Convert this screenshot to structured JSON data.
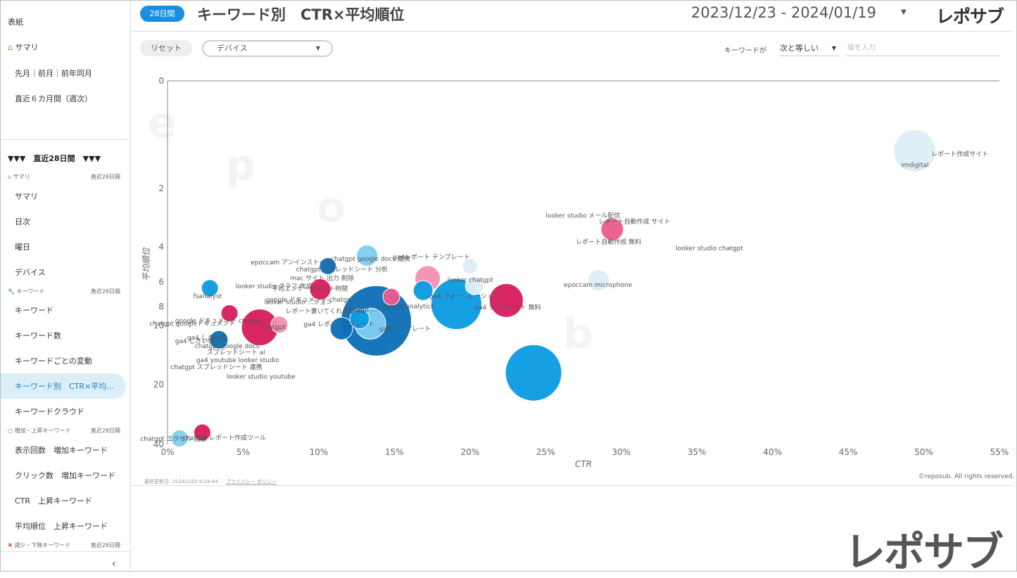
{
  "sidebar": {
    "top_items": [
      "表紙",
      "サマリ",
      "先月｜前月｜前年同月",
      "直近６カ月間（週次）"
    ],
    "section_title": "▼▼▼　直近28日間　▼▼▼",
    "groups": [
      {
        "label": "サマリ",
        "period": "直近28日間",
        "icon": "house-icon",
        "items": [
          "サマリ",
          "日次",
          "曜日",
          "デバイス"
        ]
      },
      {
        "label": "キーワード",
        "period": "直近28日間",
        "icon": "wrench-icon",
        "items": [
          "キーワード",
          "キーワード数",
          "キーワードごとの変動",
          "キーワード別　CTR×平均...",
          "キーワードクラウド"
        ]
      },
      {
        "label": "増加・上昇キーワード",
        "period": "直近28日間",
        "icon": "circle-icon",
        "items": [
          "表示回数　増加キーワード",
          "クリック数　増加キーワード",
          "CTR　上昇キーワード",
          "平均順位　上昇キーワード"
        ]
      },
      {
        "label": "減少・下降キーワード",
        "period": "直近28日間",
        "icon": "cross-icon",
        "items": []
      }
    ],
    "active_item": "キーワード別　CTR×平均...",
    "collapse_label": "‹"
  },
  "header": {
    "period_badge": "28日間",
    "title": "キーワード別　CTR×平均順位",
    "date_range": "2023/12/23 - 2024/01/19",
    "logo": "レポサブ"
  },
  "controls": {
    "reset_label": "リセット",
    "device_label": "デバイス",
    "keyword_filter_label": "キーワードが",
    "operator_value": "次と等しい",
    "value_placeholder": "値を入力"
  },
  "footer": {
    "last_updated": "最終更新日: 2024/1/20 9:18:44",
    "privacy_link": "プライバシー ポリシー",
    "copyright": "©reposub. All rights reserved.",
    "big_logo": "レポサブ"
  },
  "chart_data": {
    "type": "scatter",
    "bubble": true,
    "xlabel": "CTR",
    "ylabel": "平均順位",
    "x_ticks": [
      "0%",
      "5%",
      "10%",
      "15%",
      "20%",
      "25%",
      "30%",
      "35%",
      "40%",
      "45%",
      "50%",
      "55%"
    ],
    "y_ticks": [
      "0",
      "2",
      "4",
      "6",
      "8",
      "10",
      "20",
      "40"
    ],
    "xlim": [
      0,
      55
    ],
    "y_axis_reversed": true,
    "grid": false,
    "colors": {
      "dark_blue": "#0b6eb5",
      "blue": "#0a9be3",
      "light_blue": "#7fcdf3",
      "pale_blue": "#ddeef8",
      "dark_pink": "#d81a5c",
      "pink": "#ee5b8b",
      "light_pink": "#f38fb1"
    },
    "points": [
      {
        "x": 49.4,
        "y": 1.3,
        "size": 30,
        "color": "pale_blue"
      },
      {
        "x": 29.4,
        "y": 3.4,
        "size": 16,
        "color": "pink"
      },
      {
        "x": 28.5,
        "y": 5.9,
        "size": 15,
        "color": "pale_blue"
      },
      {
        "x": 22.4,
        "y": 7.5,
        "size": 24,
        "color": "dark_pink"
      },
      {
        "x": 24.2,
        "y": 18,
        "size": 40,
        "color": "blue"
      },
      {
        "x": 19.1,
        "y": 7.8,
        "size": 36,
        "color": "blue"
      },
      {
        "x": 20.0,
        "y": 5.1,
        "size": 11,
        "color": "pale_blue"
      },
      {
        "x": 20.3,
        "y": 6.3,
        "size": 13,
        "color": "pale_blue"
      },
      {
        "x": 17.2,
        "y": 5.8,
        "size": 18,
        "color": "light_pink"
      },
      {
        "x": 16.9,
        "y": 6.7,
        "size": 14,
        "color": "blue"
      },
      {
        "x": 13.8,
        "y": 9.5,
        "size": 50,
        "color": "dark_blue"
      },
      {
        "x": 13.4,
        "y": 9.8,
        "size": 22,
        "color": "light_blue"
      },
      {
        "x": 12.7,
        "y": 9.3,
        "size": 14,
        "color": "blue"
      },
      {
        "x": 11.5,
        "y": 10.5,
        "size": 16,
        "color": "dark_blue"
      },
      {
        "x": 14.8,
        "y": 7.2,
        "size": 12,
        "color": "pink"
      },
      {
        "x": 13.2,
        "y": 4.5,
        "size": 15,
        "color": "light_blue"
      },
      {
        "x": 10.6,
        "y": 5.1,
        "size": 12,
        "color": "dark_blue"
      },
      {
        "x": 10.1,
        "y": 6.6,
        "size": 15,
        "color": "dark_pink"
      },
      {
        "x": 7.4,
        "y": 9.9,
        "size": 12,
        "color": "light_pink"
      },
      {
        "x": 6.1,
        "y": 10.3,
        "size": 26,
        "color": "dark_pink"
      },
      {
        "x": 4.1,
        "y": 8.7,
        "size": 12,
        "color": "dark_pink"
      },
      {
        "x": 3.4,
        "y": 12.4,
        "size": 13,
        "color": "dark_blue"
      },
      {
        "x": 2.8,
        "y": 6.5,
        "size": 12,
        "color": "blue"
      },
      {
        "x": 2.3,
        "y": 36,
        "size": 12,
        "color": "dark_pink"
      },
      {
        "x": 0.8,
        "y": 38,
        "size": 12,
        "color": "light_blue"
      }
    ],
    "labels": [
      {
        "text": "レポート作成サイト",
        "x": 50.5,
        "y": 1.4
      },
      {
        "text": "imdigital",
        "x": 48.5,
        "y": 1.6
      },
      {
        "text": "looker studio メール配信",
        "x": 25.0,
        "y": 3.0
      },
      {
        "text": "レポート自動作成 サイト",
        "x": 28.5,
        "y": 3.2
      },
      {
        "text": "レポート自動作成 無料",
        "x": 27.0,
        "y": 3.9
      },
      {
        "text": "looker studio chatgpt",
        "x": 33.6,
        "y": 4.2
      },
      {
        "text": "epoccam microphone",
        "x": 26.2,
        "y": 6.4
      },
      {
        "text": "ga4レポート テンプレート",
        "x": 14.9,
        "y": 4.7
      },
      {
        "text": "looker chatgpt",
        "x": 18.5,
        "y": 6.0
      },
      {
        "text": "ga4 フォー...レーション",
        "x": 17.3,
        "y": 7.3
      },
      {
        "text": "ga4 テンプレート 無料",
        "x": 20.3,
        "y": 8.3
      },
      {
        "text": "epoccam アンインストール",
        "x": 5.5,
        "y": 5.0
      },
      {
        "text": "chatgpt google docs 連携",
        "x": 10.8,
        "y": 4.8
      },
      {
        "text": "chatgpt スプレッドシート 分析",
        "x": 8.5,
        "y": 5.4
      },
      {
        "text": "looker studio グラフ 作成",
        "x": 4.5,
        "y": 6.5
      },
      {
        "text": "mac サイト 出力 削除",
        "x": 8.1,
        "y": 5.9
      },
      {
        "text": "平均エンゲージメント時間",
        "x": 6.9,
        "y": 6.7
      },
      {
        "text": "google ドキュメント chatgpt",
        "x": 6.5,
        "y": 7.6
      },
      {
        "text": "looker studio ...ション",
        "x": 6.4,
        "y": 7.8
      },
      {
        "text": "レポート書いてくれるサイト",
        "x": 7.8,
        "y": 8.7
      },
      {
        "text": "fsanalyst",
        "x": 1.7,
        "y": 7.3
      },
      {
        "text": "google ドキュメント chatgpt",
        "x": 0.5,
        "y": 9.7
      },
      {
        "text": "chatgpt googleドキュメント",
        "x": -1.2,
        "y": 10.0
      },
      {
        "text": "chatgpt",
        "x": 6.2,
        "y": 10.6
      },
      {
        "text": "ga4 しきい値",
        "x": 1.3,
        "y": 12.4
      },
      {
        "text": "ga4 しきい値",
        "x": 0.5,
        "y": 13.0
      },
      {
        "text": "chatgpt google docs",
        "x": 1.8,
        "y": 13.8
      },
      {
        "text": "スプレッドシート ai",
        "x": 2.6,
        "y": 14.9
      },
      {
        "text": "ga4 youtube looker studio",
        "x": 1.9,
        "y": 16.2
      },
      {
        "text": "chatgpt スプレッドシート 連携",
        "x": 0.2,
        "y": 17.4
      },
      {
        "text": "looker studio youtube",
        "x": 3.9,
        "y": 19.0
      },
      {
        "text": "chatgpt エクセル 画像",
        "x": -1.8,
        "y": 38.8
      },
      {
        "text": "chatgpt レポート作成ツール",
        "x": 1.0,
        "y": 38.5
      },
      {
        "text": "ga4 レポート...フレート",
        "x": 9.0,
        "y": 10.1
      },
      {
        "text": "ga4 テンプレート",
        "x": 14.0,
        "y": 10.9
      },
      {
        "text": "chatgpt ...",
        "x": 11.7,
        "y": 8.5
      },
      {
        "text": "google analytics",
        "x": 14.2,
        "y": 8.2
      }
    ]
  }
}
